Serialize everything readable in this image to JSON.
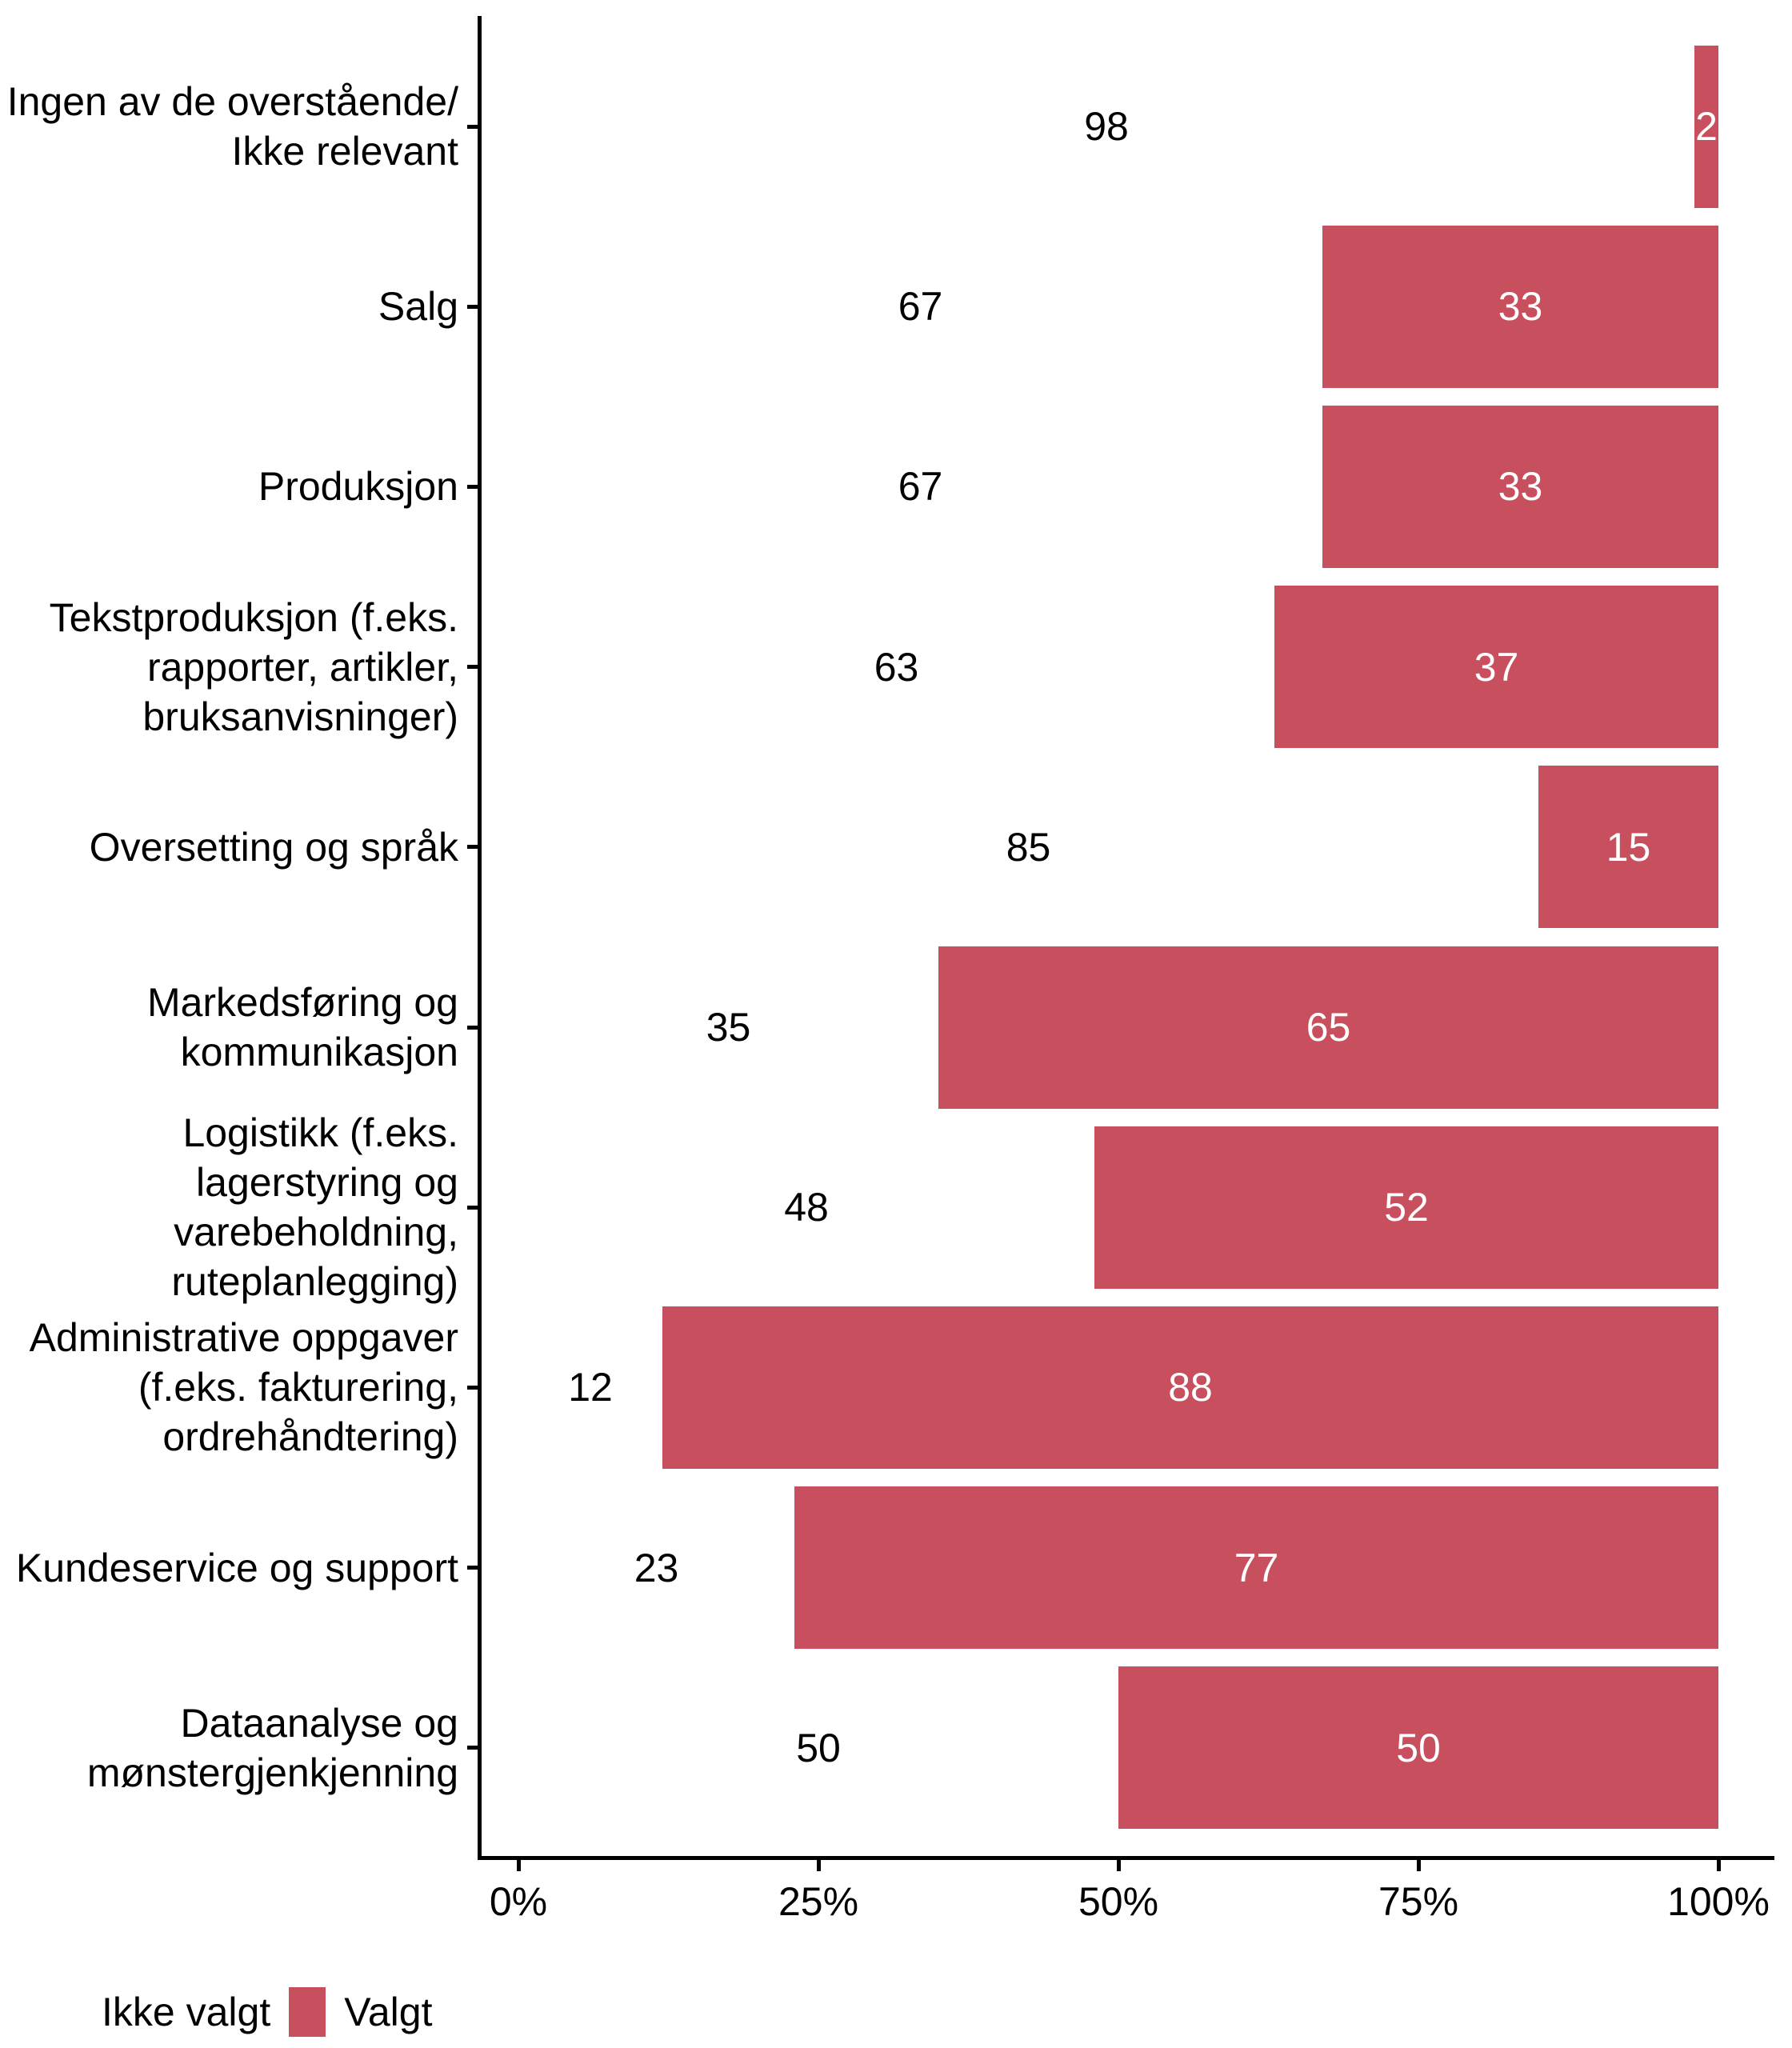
{
  "chart_data": {
    "type": "bar",
    "orientation": "horizontal",
    "stacked": true,
    "unit": "percent",
    "title": "",
    "xlabel": "",
    "ylabel": "",
    "xlim": [
      0,
      100
    ],
    "x_ticks": [
      {
        "value": 0,
        "label": "0%"
      },
      {
        "value": 25,
        "label": "25%"
      },
      {
        "value": 50,
        "label": "50%"
      },
      {
        "value": 75,
        "label": "75%"
      },
      {
        "value": 100,
        "label": "100%"
      }
    ],
    "categories": [
      "Ingen av de overstående/\nIkke relevant",
      "Salg",
      "Produksjon",
      "Tekstproduksjon (f.eks.\nrapporter, artikler,\nbruksanvisninger)",
      "Oversetting og språk",
      "Markedsføring og\nkommunikasjon",
      "Logistikk (f.eks.\nlagerstyring og\nvarebeholdning,\nruteplanlegging)",
      "Administrative oppgaver\n(f.eks. fakturering,\nordrehåndtering)",
      "Kundeservice og support",
      "Dataanalyse og\nmønstergjenkjenning"
    ],
    "series": [
      {
        "name": "Ikke valgt",
        "color": "#FFFFFF",
        "label_color": "#000000",
        "values": [
          98,
          67,
          67,
          63,
          85,
          35,
          48,
          12,
          23,
          50
        ]
      },
      {
        "name": "Valgt",
        "color": "#C84F5E",
        "label_color": "#FFFFFF",
        "values": [
          2,
          33,
          33,
          37,
          15,
          65,
          52,
          88,
          77,
          50
        ]
      }
    ],
    "grid": false,
    "legend_position": "bottom-left"
  },
  "legend": {
    "items": [
      {
        "label": "Ikke valgt",
        "color": "#FFFFFF"
      },
      {
        "label": "Valgt",
        "color": "#C84F5E"
      }
    ]
  }
}
